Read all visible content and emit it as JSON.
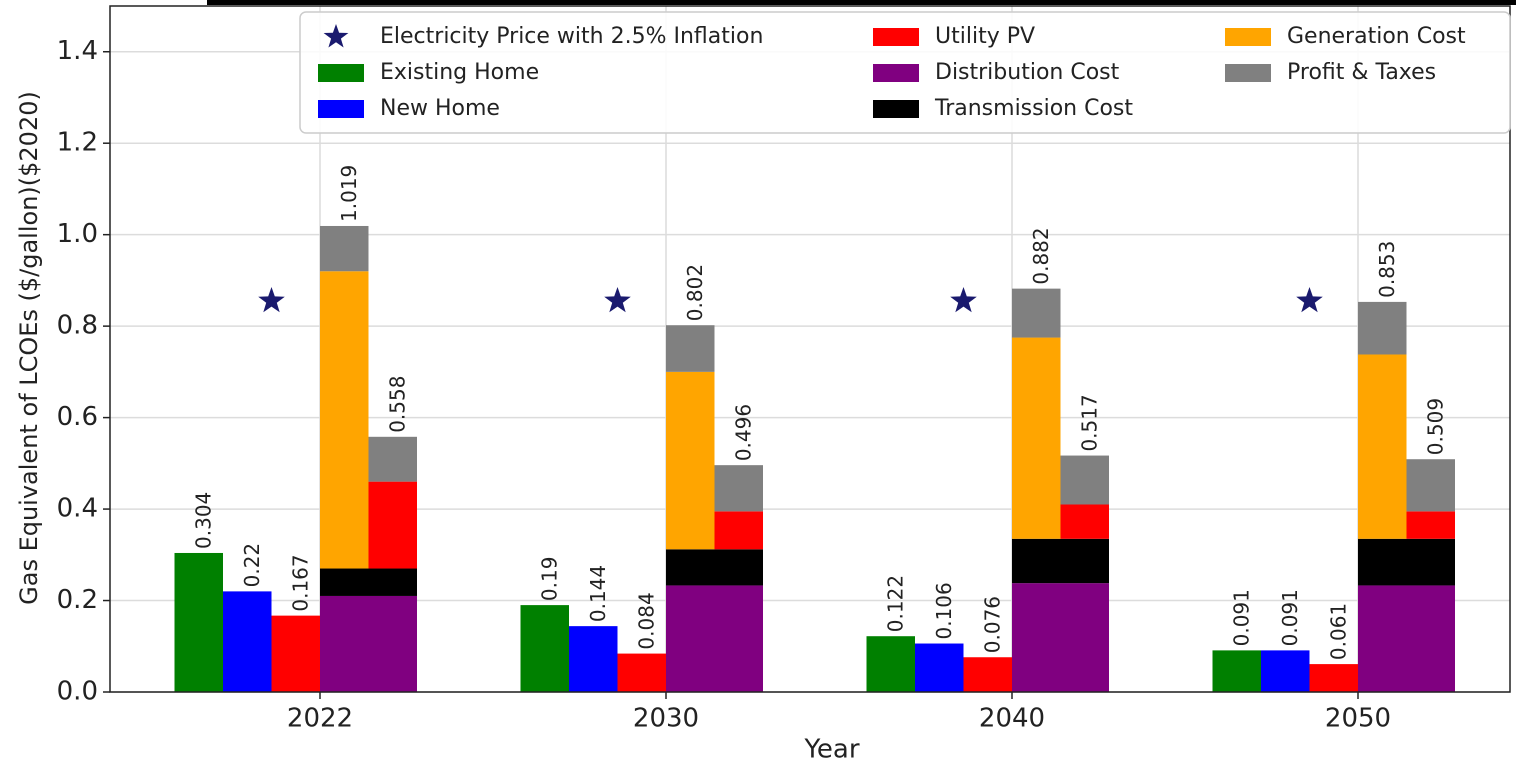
{
  "chart_data": {
    "type": "bar",
    "xlabel": "Year",
    "ylabel": "Gas Equivalent of LCOEs ($/gallon)($2020)",
    "categories": [
      "2022",
      "2030",
      "2040",
      "2050"
    ],
    "ylim": [
      0,
      1.5
    ],
    "yticks": [
      {
        "value": 0,
        "label": "0.0"
      },
      0.2,
      0.4,
      0.6,
      0.8,
      {
        "value": 1,
        "label": "1.0"
      },
      1.2,
      1.4
    ],
    "grid": true,
    "legend": "upper right",
    "series": [
      {
        "name": "Electricity Price with 2.5% Inflation",
        "type": "scatter",
        "marker": "star",
        "color": "#1a1a6e",
        "values": [
          0.855,
          0.855,
          0.855,
          0.855
        ]
      },
      {
        "name": "Existing Home",
        "color": "#008000",
        "values": [
          0.304,
          0.19,
          0.122,
          0.091
        ]
      },
      {
        "name": "New Home",
        "color": "#0000ff",
        "values": [
          0.22,
          0.144,
          0.106,
          0.091
        ]
      },
      {
        "name": "Utility PV",
        "color": "#ff0000",
        "values": [
          0.167,
          0.084,
          0.076,
          0.061
        ]
      }
    ],
    "stacks": [
      {
        "totals": [
          1.019,
          0.802,
          0.882,
          0.853
        ],
        "segments": [
          {
            "name": "Distribution Cost",
            "color": "#800080",
            "values": [
              0.21,
              0.233,
              0.238,
              0.233
            ]
          },
          {
            "name": "Transmission Cost",
            "color": "#000000",
            "values": [
              0.06,
              0.079,
              0.097,
              0.102
            ]
          },
          {
            "name": "Generation Cost",
            "color": "#ffa500",
            "values": [
              0.65,
              0.388,
              0.44,
              0.403
            ]
          },
          {
            "name": "Profit & Taxes",
            "color": "#808080",
            "values": [
              0.099,
              0.102,
              0.107,
              0.115
            ]
          }
        ]
      },
      {
        "totals": [
          0.558,
          0.496,
          0.517,
          0.509
        ],
        "segments": [
          {
            "color": "#800080",
            "values": [
              0.21,
              0.233,
              0.238,
              0.233
            ]
          },
          {
            "color": "#000000",
            "values": [
              0.06,
              0.079,
              0.097,
              0.102
            ]
          },
          {
            "color": "#ff0000",
            "values": [
              0.19,
              0.083,
              0.075,
              0.06
            ]
          },
          {
            "color": "#808080",
            "values": [
              0.098,
              0.101,
              0.107,
              0.114
            ]
          }
        ]
      }
    ]
  }
}
